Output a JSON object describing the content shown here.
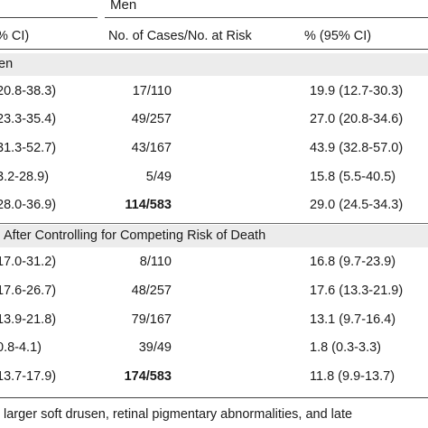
{
  "table": {
    "group_header": "Men",
    "columns": {
      "col1": "% CI)",
      "col2": "No. of Cases/No. at Risk",
      "col3": "% (95% CI)"
    },
    "sections": [
      {
        "label": "en",
        "rows": [
          {
            "c1": "20.8-38.3)",
            "c2": "17/110",
            "c3": "19.9 (12.7-30.3)"
          },
          {
            "c1": "23.3-35.4)",
            "c2": "49/257",
            "c3": "27.0 (20.8-34.6)"
          },
          {
            "c1": "31.3-52.7)",
            "c2": "43/167",
            "c3": "43.9 (32.8-57.0)"
          },
          {
            "c1": "3.2-28.9)",
            "c2": "5/49",
            "c3": "15.8 (5.5-40.5)"
          },
          {
            "c1": "28.0-36.9)",
            "c2": "114/583",
            "c3": "29.0 (24.5-34.3)",
            "total": true
          }
        ]
      },
      {
        "label": "After Controlling for Competing Risk of Death",
        "rows": [
          {
            "c1": "17.0-31.2)",
            "c2": "8/110",
            "c3": "16.8 (9.7-23.9)"
          },
          {
            "c1": "17.6-26.7)",
            "c2": "48/257",
            "c3": "17.6 (13.3-21.9)"
          },
          {
            "c1": "13.9-21.8)",
            "c2": "79/167",
            "c3": "13.1 (9.7-16.4)"
          },
          {
            "c1": "0.8-4.1)",
            "c2": "39/49",
            "c3": "1.8 (0.3-3.3)"
          },
          {
            "c1": "13.7-17.9)",
            "c2": "174/583",
            "c3": "11.8 (9.9-13.7)",
            "total": true
          }
        ]
      }
    ]
  },
  "footnote": "larger soft drusen, retinal pigmentary abnormalities, and late"
}
